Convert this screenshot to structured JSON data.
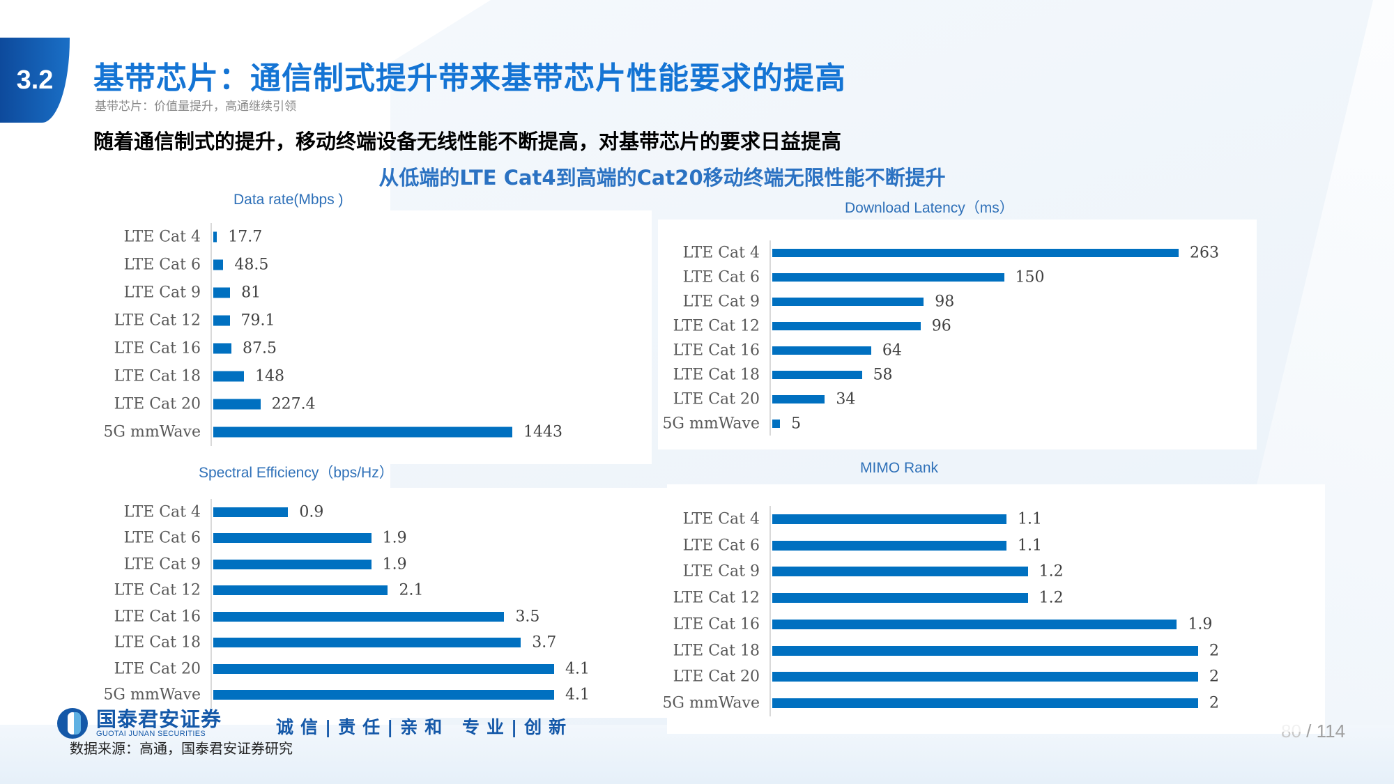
{
  "section": {
    "number": "3.2"
  },
  "header": {
    "title": "基带芯片：通信制式提升带来基带芯片性能要求的提高",
    "subtitle": "基带芯片：价值量提升，高通继续引领"
  },
  "headline": "随着通信制式的提升，移动终端设备无线性能不断提高，对基带芯片的要求日益提高",
  "subheadline": "从低端的LTE Cat4到高端的Cat20移动终端无限性能不断提升",
  "colors": {
    "bar": "#0070c0",
    "title_blue": "#1474d4",
    "chart_title": "#2e70b8"
  },
  "chart_data": [
    {
      "type": "bar",
      "orientation": "horizontal",
      "title": "Data rate(Mbps )",
      "categories": [
        "LTE Cat 4",
        "LTE Cat 6",
        "LTE Cat 9",
        "LTE Cat 12",
        "LTE Cat 16",
        "LTE Cat 18",
        "LTE Cat 20",
        "5G mmWave"
      ],
      "values": [
        17.7,
        48.5,
        81,
        79.1,
        87.5,
        148,
        227.4,
        1443
      ],
      "labels": [
        "17.7",
        "48.5",
        "81",
        "79.1",
        "87.5",
        "148",
        "227.4",
        "1443"
      ],
      "xlabel": "",
      "ylabel": "",
      "grid": false
    },
    {
      "type": "bar",
      "orientation": "horizontal",
      "title": "Download Latency（ms）",
      "categories": [
        "LTE Cat 4",
        "LTE Cat 6",
        "LTE Cat 9",
        "LTE Cat 12",
        "LTE Cat 16",
        "LTE Cat 18",
        "LTE Cat 20",
        "5G mmWave"
      ],
      "values": [
        263,
        150,
        98,
        96,
        64,
        58,
        34,
        5
      ],
      "labels": [
        "263",
        "150",
        "98",
        "96",
        "64",
        "58",
        "34",
        "5"
      ],
      "xlabel": "",
      "ylabel": "",
      "grid": false
    },
    {
      "type": "bar",
      "orientation": "horizontal",
      "title": "Spectral Efficiency（bps/Hz）",
      "categories": [
        "LTE Cat 4",
        "LTE Cat 6",
        "LTE Cat 9",
        "LTE Cat 12",
        "LTE Cat 16",
        "LTE Cat 18",
        "LTE Cat 20",
        "5G mmWave"
      ],
      "values": [
        0.9,
        1.9,
        1.9,
        2.1,
        3.5,
        3.7,
        4.1,
        4.1
      ],
      "labels": [
        "0.9",
        "1.9",
        "1.9",
        "2.1",
        "3.5",
        "3.7",
        "4.1",
        "4.1"
      ],
      "xlabel": "",
      "ylabel": "",
      "grid": false
    },
    {
      "type": "bar",
      "orientation": "horizontal",
      "title": "MIMO Rank",
      "categories": [
        "LTE Cat 4",
        "LTE Cat 6",
        "LTE Cat 9",
        "LTE Cat 12",
        "LTE Cat 16",
        "LTE Cat 18",
        "LTE Cat 20",
        "5G mmWave"
      ],
      "values": [
        1.1,
        1.1,
        1.2,
        1.2,
        1.9,
        2,
        2,
        2
      ],
      "labels": [
        "1.1",
        "1.1",
        "1.2",
        "1.2",
        "1.9",
        "2",
        "2",
        "2"
      ],
      "xlabel": "",
      "ylabel": "",
      "grid": false
    }
  ],
  "footer": {
    "logo_cn": "国泰君安证券",
    "logo_en": "GUOTAI JUNAN SECURITIES",
    "slogan": "诚信|责任|亲和 专业|创新",
    "source": "数据来源：高通，国泰君安证券研究",
    "page_current": "80",
    "page_sep": " / ",
    "page_total": "114"
  }
}
